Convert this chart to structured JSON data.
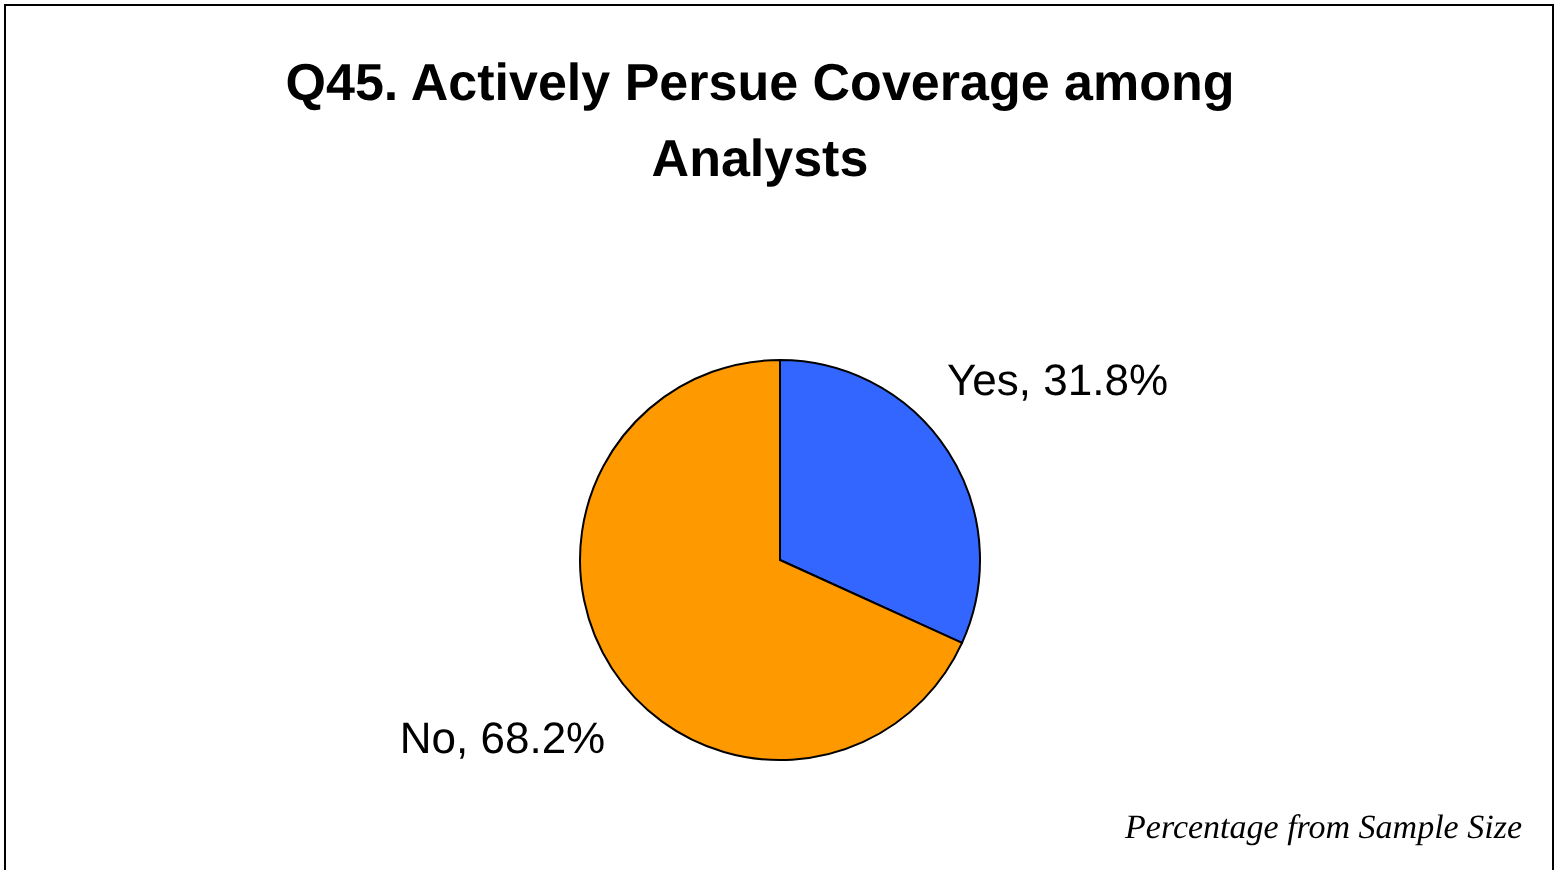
{
  "chart_data": {
    "type": "pie",
    "title": "Q45. Actively Persue Coverage among Analysts",
    "categories": [
      "Yes",
      "No"
    ],
    "values": [
      31.8,
      68.2
    ],
    "colors": [
      "#3366ff",
      "#ff9900"
    ],
    "value_labels": [
      "31.8%",
      "68.2%"
    ],
    "annotations": [
      "Percentage from Sample Size"
    ]
  }
}
